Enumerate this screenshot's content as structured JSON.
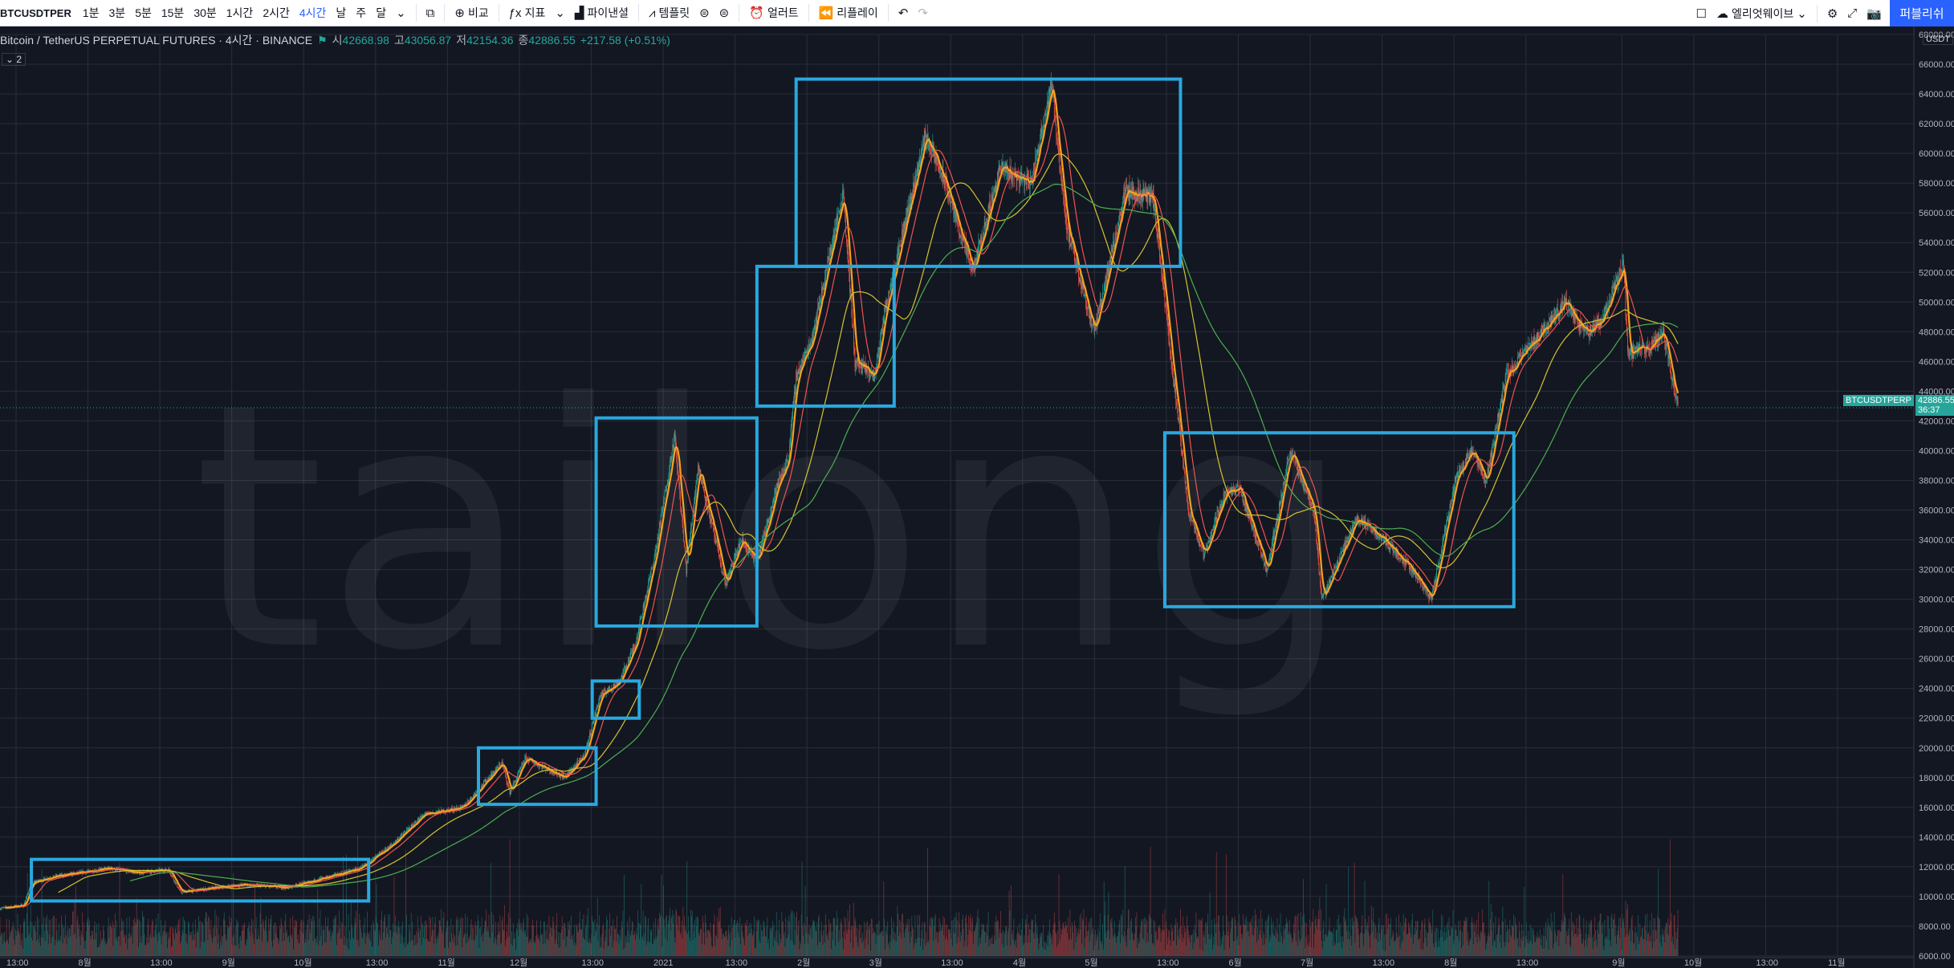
{
  "toolbar": {
    "symbol": "BTCUSDTPER",
    "intervals": [
      "1분",
      "3분",
      "5분",
      "15분",
      "30분",
      "1시간",
      "2시간",
      "4시간",
      "날",
      "주",
      "달"
    ],
    "active_interval": "4시간",
    "compare_label": "비교",
    "indicators_label": "지표",
    "financials_label": "파이낸셜",
    "templates_label": "템플릿",
    "alert_label": "얼러트",
    "replay_label": "리플레이",
    "layout_label": "엘리엇웨이브",
    "publish_label": "퍼블리쉬"
  },
  "legend": {
    "title": "Bitcoin / TetherUS PERPETUAL FUTURES · 4시간 · BINANCE",
    "open_label": "시",
    "open": "42668.98",
    "high_label": "고",
    "high": "43056.87",
    "low_label": "저",
    "low": "42154.36",
    "close_label": "종",
    "close": "42886.55",
    "change": "+217.58 (+0.51%)",
    "indicator_count": "2"
  },
  "watermark": "tailong",
  "price_tag": {
    "symbol": "BTCUSDTPERP",
    "price": "42886.55",
    "countdown": "36:37"
  },
  "axis_currency": "USDT",
  "colors": {
    "background": "#131722",
    "grid": "#2a2e39",
    "up": "#26a69a",
    "down": "#ef5350",
    "box": "#29a8e0",
    "ma_fast": "#f7a21b",
    "ma_mid": "#ef5350",
    "ma_slow1": "#d4c430",
    "ma_slow2": "#4caf50"
  },
  "chart_data": {
    "type": "candlestick",
    "title": "Bitcoin / TetherUS PERPETUAL FUTURES",
    "ylabel": "USDT",
    "ylim": [
      6000,
      68000
    ],
    "y_ticks": [
      6000,
      8000,
      10000,
      12000,
      14000,
      16000,
      18000,
      20000,
      22000,
      24000,
      26000,
      28000,
      30000,
      32000,
      34000,
      36000,
      38000,
      40000,
      42000,
      44000,
      46000,
      48000,
      50000,
      52000,
      54000,
      56000,
      58000,
      60000,
      62000,
      64000,
      66000,
      68000
    ],
    "x_ticks": [
      "13:00",
      "8월",
      "13:00",
      "9월",
      "10월",
      "13:00",
      "11월",
      "12월",
      "13:00",
      "2021",
      "13:00",
      "2월",
      "3월",
      "13:00",
      "4월",
      "5월",
      "13:00",
      "6월",
      "7월",
      "13:00",
      "8월",
      "13:00",
      "9월",
      "10월",
      "13:00",
      "11월"
    ],
    "x_range": [
      "2020-07-20",
      "2021-11-20"
    ],
    "price_path": [
      [
        "2020-07-20",
        9200
      ],
      [
        "2020-07-26",
        9400
      ],
      [
        "2020-07-28",
        10900
      ],
      [
        "2020-08-02",
        11300
      ],
      [
        "2020-08-17",
        11900
      ],
      [
        "2020-08-24",
        11600
      ],
      [
        "2020-09-01",
        11800
      ],
      [
        "2020-09-04",
        10300
      ],
      [
        "2020-09-20",
        10800
      ],
      [
        "2020-10-01",
        10600
      ],
      [
        "2020-10-10",
        11200
      ],
      [
        "2020-10-20",
        11900
      ],
      [
        "2020-10-28",
        13500
      ],
      [
        "2020-11-05",
        15500
      ],
      [
        "2020-11-15",
        16000
      ],
      [
        "2020-11-25",
        19000
      ],
      [
        "2020-11-27",
        17000
      ],
      [
        "2020-12-01",
        19300
      ],
      [
        "2020-12-11",
        18000
      ],
      [
        "2020-12-16",
        19500
      ],
      [
        "2020-12-20",
        23500
      ],
      [
        "2020-12-25",
        24500
      ],
      [
        "2020-12-29",
        27000
      ],
      [
        "2021-01-03",
        33000
      ],
      [
        "2021-01-08",
        41000
      ],
      [
        "2021-01-11",
        32000
      ],
      [
        "2021-01-14",
        39000
      ],
      [
        "2021-01-21",
        31000
      ],
      [
        "2021-01-25",
        34000
      ],
      [
        "2021-01-29",
        32500
      ],
      [
        "2021-02-03",
        37500
      ],
      [
        "2021-02-06",
        39500
      ],
      [
        "2021-02-08",
        45000
      ],
      [
        "2021-02-12",
        47500
      ],
      [
        "2021-02-20",
        57500
      ],
      [
        "2021-02-23",
        46000
      ],
      [
        "2021-02-28",
        45000
      ],
      [
        "2021-03-03",
        50000
      ],
      [
        "2021-03-13",
        61200
      ],
      [
        "2021-03-18",
        58000
      ],
      [
        "2021-03-25",
        52000
      ],
      [
        "2021-04-01",
        59000
      ],
      [
        "2021-04-09",
        58000
      ],
      [
        "2021-04-14",
        64800
      ],
      [
        "2021-04-18",
        55000
      ],
      [
        "2021-04-25",
        48000
      ],
      [
        "2021-05-03",
        57500
      ],
      [
        "2021-05-10",
        57000
      ],
      [
        "2021-05-13",
        50000
      ],
      [
        "2021-05-19",
        36000
      ],
      [
        "2021-05-23",
        33000
      ],
      [
        "2021-05-28",
        37000
      ],
      [
        "2021-06-01",
        37500
      ],
      [
        "2021-06-08",
        32000
      ],
      [
        "2021-06-14",
        40000
      ],
      [
        "2021-06-20",
        36000
      ],
      [
        "2021-06-22",
        30000
      ],
      [
        "2021-07-01",
        35500
      ],
      [
        "2021-07-08",
        34000
      ],
      [
        "2021-07-15",
        32000
      ],
      [
        "2021-07-20",
        30000
      ],
      [
        "2021-07-26",
        38000
      ],
      [
        "2021-07-30",
        40000
      ],
      [
        "2021-08-03",
        38000
      ],
      [
        "2021-08-08",
        45000
      ],
      [
        "2021-08-14",
        47000
      ],
      [
        "2021-08-23",
        50000
      ],
      [
        "2021-08-28",
        48000
      ],
      [
        "2021-09-01",
        48500
      ],
      [
        "2021-09-07",
        52500
      ],
      [
        "2021-09-08",
        46500
      ],
      [
        "2021-09-14",
        47000
      ],
      [
        "2021-09-17",
        48000
      ],
      [
        "2021-09-21",
        42800
      ]
    ],
    "annotation_boxes": [
      {
        "x": [
          "2020-07-28",
          "2020-10-22"
        ],
        "y": [
          9700,
          12500
        ]
      },
      {
        "x": [
          "2020-11-19",
          "2020-12-19"
        ],
        "y": [
          16200,
          20000
        ]
      },
      {
        "x": [
          "2020-12-18",
          "2020-12-30"
        ],
        "y": [
          22000,
          24500
        ]
      },
      {
        "x": [
          "2020-12-19",
          "2021-01-29"
        ],
        "y": [
          28200,
          42200
        ]
      },
      {
        "x": [
          "2021-01-29",
          "2021-03-05"
        ],
        "y": [
          43000,
          52400
        ]
      },
      {
        "x": [
          "2021-02-08",
          "2021-05-17"
        ],
        "y": [
          52400,
          65000
        ]
      },
      {
        "x": [
          "2021-05-13",
          "2021-08-10"
        ],
        "y": [
          29500,
          41200
        ]
      }
    ]
  }
}
